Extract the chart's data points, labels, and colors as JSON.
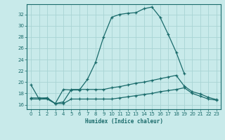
{
  "title": "",
  "xlabel": "Humidex (Indice chaleur)",
  "bg_color": "#c8eaea",
  "grid_color": "#a8d4d4",
  "line_color": "#1a6b6b",
  "x_ticks": [
    0,
    1,
    2,
    3,
    4,
    5,
    6,
    7,
    8,
    9,
    10,
    11,
    12,
    13,
    14,
    15,
    16,
    17,
    18,
    19,
    20,
    21,
    22,
    23
  ],
  "y_ticks": [
    16,
    18,
    20,
    22,
    24,
    26,
    28,
    30,
    32
  ],
  "xlim": [
    -0.5,
    23.5
  ],
  "ylim": [
    15.2,
    33.8
  ],
  "line1_x": [
    0,
    1,
    2,
    3,
    4,
    5,
    6,
    7,
    8,
    9,
    10,
    11,
    12,
    13,
    14,
    15,
    16,
    17,
    18,
    19
  ],
  "line1_y": [
    19.5,
    17.0,
    17.2,
    16.2,
    18.7,
    18.6,
    18.6,
    20.5,
    23.5,
    28.0,
    31.5,
    32.0,
    32.2,
    32.3,
    33.0,
    33.3,
    31.5,
    28.5,
    25.3,
    21.5
  ],
  "line2_x": [
    0,
    1,
    2,
    3,
    4,
    5,
    6,
    7,
    8,
    9,
    10,
    11,
    12,
    13,
    14,
    15,
    16,
    17,
    18,
    19,
    20,
    21,
    22,
    23
  ],
  "line2_y": [
    17.2,
    17.2,
    17.2,
    16.2,
    16.5,
    18.7,
    18.7,
    18.7,
    18.7,
    18.7,
    19.0,
    19.2,
    19.5,
    19.8,
    20.0,
    20.3,
    20.6,
    20.9,
    21.2,
    19.3,
    18.3,
    17.9,
    17.3,
    16.9
  ],
  "line3_x": [
    0,
    1,
    2,
    3,
    4,
    5,
    6,
    7,
    8,
    9,
    10,
    11,
    12,
    13,
    14,
    15,
    16,
    17,
    18,
    19,
    20,
    21,
    22,
    23
  ],
  "line3_y": [
    17.0,
    17.0,
    17.0,
    16.2,
    16.2,
    17.0,
    17.0,
    17.0,
    17.0,
    17.0,
    17.0,
    17.2,
    17.4,
    17.6,
    17.8,
    18.0,
    18.3,
    18.5,
    18.7,
    19.0,
    18.0,
    17.5,
    17.0,
    16.8
  ]
}
